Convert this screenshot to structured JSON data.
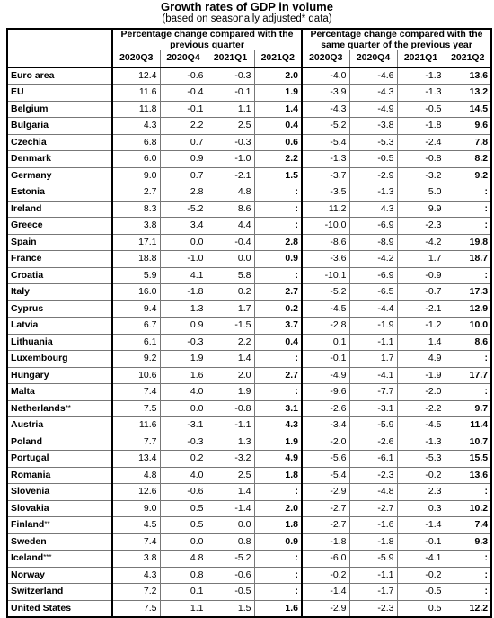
{
  "title": "Growth rates of GDP in volume",
  "subtitle": "(based on seasonally adjusted* data)",
  "groups": {
    "qoq": "Percentage change compared with the previous quarter",
    "yoy": "Percentage change compared with the same quarter of the previous year"
  },
  "columns": [
    "2020Q3",
    "2020Q4",
    "2021Q1",
    "2021Q2",
    "2020Q3",
    "2020Q4",
    "2021Q1",
    "2021Q2"
  ],
  "rows": [
    {
      "name": "Euro area",
      "fn": "",
      "values": [
        "12.4",
        "-0.6",
        "-0.3",
        "2.0",
        "-4.0",
        "-4.6",
        "-1.3",
        "13.6"
      ]
    },
    {
      "name": "EU",
      "fn": "",
      "values": [
        "11.6",
        "-0.4",
        "-0.1",
        "1.9",
        "-3.9",
        "-4.3",
        "-1.3",
        "13.2"
      ]
    },
    {
      "name": "Belgium",
      "fn": "",
      "values": [
        "11.8",
        "-0.1",
        "1.1",
        "1.4",
        "-4.3",
        "-4.9",
        "-0.5",
        "14.5"
      ]
    },
    {
      "name": "Bulgaria",
      "fn": "",
      "values": [
        "4.3",
        "2.2",
        "2.5",
        "0.4",
        "-5.2",
        "-3.8",
        "-1.8",
        "9.6"
      ]
    },
    {
      "name": "Czechia",
      "fn": "",
      "values": [
        "6.8",
        "0.7",
        "-0.3",
        "0.6",
        "-5.4",
        "-5.3",
        "-2.4",
        "7.8"
      ]
    },
    {
      "name": "Denmark",
      "fn": "",
      "values": [
        "6.0",
        "0.9",
        "-1.0",
        "2.2",
        "-1.3",
        "-0.5",
        "-0.8",
        "8.2"
      ]
    },
    {
      "name": "Germany",
      "fn": "",
      "values": [
        "9.0",
        "0.7",
        "-2.1",
        "1.5",
        "-3.7",
        "-2.9",
        "-3.2",
        "9.2"
      ]
    },
    {
      "name": "Estonia",
      "fn": "",
      "values": [
        "2.7",
        "2.8",
        "4.8",
        ":",
        "-3.5",
        "-1.3",
        "5.0",
        ":"
      ]
    },
    {
      "name": "Ireland",
      "fn": "",
      "values": [
        "8.3",
        "-5.2",
        "8.6",
        ":",
        "11.2",
        "4.3",
        "9.9",
        ":"
      ]
    },
    {
      "name": "Greece",
      "fn": "",
      "values": [
        "3.8",
        "3.4",
        "4.4",
        ":",
        "-10.0",
        "-6.9",
        "-2.3",
        ":"
      ]
    },
    {
      "name": "Spain",
      "fn": "",
      "values": [
        "17.1",
        "0.0",
        "-0.4",
        "2.8",
        "-8.6",
        "-8.9",
        "-4.2",
        "19.8"
      ]
    },
    {
      "name": "France",
      "fn": "",
      "values": [
        "18.8",
        "-1.0",
        "0.0",
        "0.9",
        "-3.6",
        "-4.2",
        "1.7",
        "18.7"
      ]
    },
    {
      "name": "Croatia",
      "fn": "",
      "values": [
        "5.9",
        "4.1",
        "5.8",
        ":",
        "-10.1",
        "-6.9",
        "-0.9",
        ":"
      ]
    },
    {
      "name": "Italy",
      "fn": "",
      "values": [
        "16.0",
        "-1.8",
        "0.2",
        "2.7",
        "-5.2",
        "-6.5",
        "-0.7",
        "17.3"
      ]
    },
    {
      "name": "Cyprus",
      "fn": "",
      "values": [
        "9.4",
        "1.3",
        "1.7",
        "0.2",
        "-4.5",
        "-4.4",
        "-2.1",
        "12.9"
      ]
    },
    {
      "name": "Latvia",
      "fn": "",
      "values": [
        "6.7",
        "0.9",
        "-1.5",
        "3.7",
        "-2.8",
        "-1.9",
        "-1.2",
        "10.0"
      ]
    },
    {
      "name": "Lithuania",
      "fn": "",
      "values": [
        "6.1",
        "-0.3",
        "2.2",
        "0.4",
        "0.1",
        "-1.1",
        "1.4",
        "8.6"
      ]
    },
    {
      "name": "Luxembourg",
      "fn": "",
      "values": [
        "9.2",
        "1.9",
        "1.4",
        ":",
        "-0.1",
        "1.7",
        "4.9",
        ":"
      ]
    },
    {
      "name": "Hungary",
      "fn": "",
      "values": [
        "10.6",
        "1.6",
        "2.0",
        "2.7",
        "-4.9",
        "-4.1",
        "-1.9",
        "17.7"
      ]
    },
    {
      "name": "Malta",
      "fn": "",
      "values": [
        "7.4",
        "4.0",
        "1.9",
        ":",
        "-9.6",
        "-7.7",
        "-2.0",
        ":"
      ]
    },
    {
      "name": "Netherlands",
      "fn": "**",
      "values": [
        "7.5",
        "0.0",
        "-0.8",
        "3.1",
        "-2.6",
        "-3.1",
        "-2.2",
        "9.7"
      ]
    },
    {
      "name": "Austria",
      "fn": "",
      "values": [
        "11.6",
        "-3.1",
        "-1.1",
        "4.3",
        "-3.4",
        "-5.9",
        "-4.5",
        "11.4"
      ]
    },
    {
      "name": "Poland",
      "fn": "",
      "values": [
        "7.7",
        "-0.3",
        "1.3",
        "1.9",
        "-2.0",
        "-2.6",
        "-1.3",
        "10.7"
      ]
    },
    {
      "name": "Portugal",
      "fn": "",
      "values": [
        "13.4",
        "0.2",
        "-3.2",
        "4.9",
        "-5.6",
        "-6.1",
        "-5.3",
        "15.5"
      ]
    },
    {
      "name": "Romania",
      "fn": "",
      "values": [
        "4.8",
        "4.0",
        "2.5",
        "1.8",
        "-5.4",
        "-2.3",
        "-0.2",
        "13.6"
      ]
    },
    {
      "name": "Slovenia",
      "fn": "",
      "values": [
        "12.6",
        "-0.6",
        "1.4",
        ":",
        "-2.9",
        "-4.8",
        "2.3",
        ":"
      ]
    },
    {
      "name": "Slovakia",
      "fn": "",
      "values": [
        "9.0",
        "0.5",
        "-1.4",
        "2.0",
        "-2.7",
        "-2.7",
        "0.3",
        "10.2"
      ]
    },
    {
      "name": "Finland",
      "fn": "**",
      "values": [
        "4.5",
        "0.5",
        "0.0",
        "1.8",
        "-2.7",
        "-1.6",
        "-1.4",
        "7.4"
      ]
    },
    {
      "name": "Sweden",
      "fn": "",
      "values": [
        "7.4",
        "0.0",
        "0.8",
        "0.9",
        "-1.8",
        "-1.8",
        "-0.1",
        "9.3"
      ]
    },
    {
      "name": "Iceland",
      "fn": "***",
      "values": [
        "3.8",
        "4.8",
        "-5.2",
        ":",
        "-6.0",
        "-5.9",
        "-4.1",
        ":"
      ]
    },
    {
      "name": "Norway",
      "fn": "",
      "values": [
        "4.3",
        "0.8",
        "-0.6",
        ":",
        "-0.2",
        "-1.1",
        "-0.2",
        ":"
      ]
    },
    {
      "name": "Switzerland",
      "fn": "",
      "values": [
        "7.2",
        "0.1",
        "-0.5",
        ":",
        "-1.4",
        "-1.7",
        "-0.5",
        ":"
      ]
    },
    {
      "name": "United States",
      "fn": "",
      "values": [
        "7.5",
        "1.1",
        "1.5",
        "1.6",
        "-2.9",
        "-2.3",
        "0.5",
        "12.2"
      ]
    }
  ]
}
